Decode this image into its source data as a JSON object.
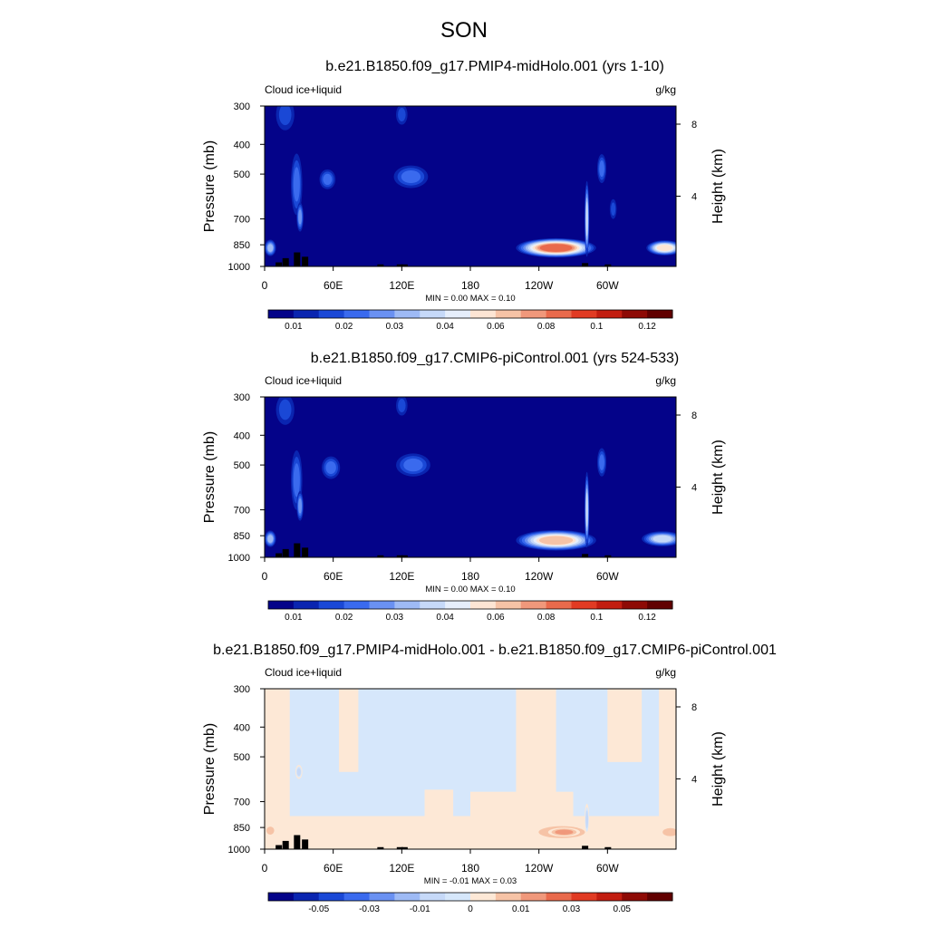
{
  "page": {
    "title": "SON"
  },
  "chart_data": [
    {
      "type": "heatmap",
      "title": "b.e21.B1850.f09_g17.PMIP4-midHolo.001 (yrs 1-10)",
      "left_label": "Cloud ice+liquid",
      "right_label": "g/kg",
      "ylabel": "Pressure (mb)",
      "y2label": "Height (km)",
      "xticks": [
        "0",
        "60E",
        "120E",
        "180",
        "120W",
        "60W"
      ],
      "xtick_lon": [
        0,
        60,
        120,
        180,
        240,
        300
      ],
      "xlim": [
        0,
        360
      ],
      "yticks": [
        "300",
        "400",
        "500",
        "700",
        "850",
        "1000"
      ],
      "ytick_p": [
        300,
        400,
        500,
        700,
        850,
        1000
      ],
      "ylim": [
        1000,
        300
      ],
      "y2ticks": [
        "8",
        "4"
      ],
      "y2tick_km": [
        8,
        4
      ],
      "minmax_text": "MIN =   0.00   MAX =   0.10",
      "colorbar_labels": [
        "0.01",
        "0.02",
        "0.03",
        "0.04",
        "0.06",
        "0.08",
        "0.1",
        "0.12"
      ],
      "colorbar_colors": [
        "#040389",
        "#0a25b0",
        "#1a48d6",
        "#3a6aee",
        "#6a91f2",
        "#9ebaf5",
        "#c6d9f8",
        "#e6eefb",
        "#fde5d4",
        "#f6c3a6",
        "#f0987b",
        "#e96a4c",
        "#e13b23",
        "#c21d10",
        "#8e0a05",
        "#610000"
      ],
      "background_color": "#040389",
      "features": [
        {
          "lon": 5,
          "p": 870,
          "dlon": 5,
          "dp": 55,
          "level": 5,
          "label": "low cloud 0E"
        },
        {
          "lon": 18,
          "p": 320,
          "dlon": 8,
          "dp": 40,
          "level": 2,
          "label": "upper cloud 20E"
        },
        {
          "lon": 28,
          "p": 540,
          "dlon": 5,
          "dp": 140,
          "level": 3,
          "label": "column 30E"
        },
        {
          "lon": 31,
          "p": 690,
          "dlon": 3,
          "dp": 80,
          "level": 4,
          "label": "column core 30E"
        },
        {
          "lon": 55,
          "p": 520,
          "dlon": 7,
          "dp": 40,
          "level": 3,
          "label": "mid cloud 55E"
        },
        {
          "lon": 120,
          "p": 320,
          "dlon": 5,
          "dp": 25,
          "level": 2,
          "label": "upper cloud 120E"
        },
        {
          "lon": 128,
          "p": 510,
          "dlon": 15,
          "dp": 45,
          "level": 3,
          "label": "mid cloud 130E"
        },
        {
          "lon": 255,
          "p": 870,
          "dlon": 35,
          "dp": 65,
          "level": 11,
          "label": "stratocumulus peru"
        },
        {
          "lon": 282,
          "p": 700,
          "dlon": 2,
          "dp": 230,
          "level": 6,
          "label": "andes column"
        },
        {
          "lon": 295,
          "p": 480,
          "dlon": 4,
          "dp": 55,
          "level": 3,
          "label": "mid cloud 65W"
        },
        {
          "lon": 305,
          "p": 650,
          "dlon": 3,
          "dp": 50,
          "level": 2,
          "label": "mid cloud 55W"
        },
        {
          "lon": 350,
          "p": 870,
          "dlon": 16,
          "dp": 50,
          "level": 8,
          "label": "stratocumulus namibia"
        }
      ],
      "terrain": [
        {
          "lon": 12,
          "p": 970
        },
        {
          "lon": 18,
          "p": 940
        },
        {
          "lon": 28,
          "p": 900
        },
        {
          "lon": 35,
          "p": 930
        },
        {
          "lon": 101,
          "p": 985
        },
        {
          "lon": 118,
          "p": 985
        },
        {
          "lon": 122,
          "p": 985
        },
        {
          "lon": 280,
          "p": 975
        },
        {
          "lon": 300,
          "p": 985
        }
      ]
    },
    {
      "type": "heatmap",
      "title": "b.e21.B1850.f09_g17.CMIP6-piControl.001 (yrs 524-533)",
      "left_label": "Cloud ice+liquid",
      "right_label": "g/kg",
      "ylabel": "Pressure (mb)",
      "y2label": "Height (km)",
      "xticks": [
        "0",
        "60E",
        "120E",
        "180",
        "120W",
        "60W"
      ],
      "xtick_lon": [
        0,
        60,
        120,
        180,
        240,
        300
      ],
      "xlim": [
        0,
        360
      ],
      "yticks": [
        "300",
        "400",
        "500",
        "700",
        "850",
        "1000"
      ],
      "ytick_p": [
        300,
        400,
        500,
        700,
        850,
        1000
      ],
      "ylim": [
        1000,
        300
      ],
      "y2ticks": [
        "8",
        "4"
      ],
      "y2tick_km": [
        8,
        4
      ],
      "minmax_text": "MIN =   0.00   MAX =   0.10",
      "colorbar_labels": [
        "0.01",
        "0.02",
        "0.03",
        "0.04",
        "0.06",
        "0.08",
        "0.1",
        "0.12"
      ],
      "colorbar_colors": [
        "#040389",
        "#0a25b0",
        "#1a48d6",
        "#3a6aee",
        "#6a91f2",
        "#9ebaf5",
        "#c6d9f8",
        "#e6eefb",
        "#fde5d4",
        "#f6c3a6",
        "#f0987b",
        "#e96a4c",
        "#e13b23",
        "#c21d10",
        "#8e0a05",
        "#610000"
      ],
      "background_color": "#040389",
      "features": [
        {
          "lon": 5,
          "p": 870,
          "dlon": 5,
          "dp": 55,
          "level": 5,
          "label": "low cloud 0E"
        },
        {
          "lon": 18,
          "p": 330,
          "dlon": 8,
          "dp": 40,
          "level": 2,
          "label": "upper cloud 20E"
        },
        {
          "lon": 28,
          "p": 560,
          "dlon": 5,
          "dp": 140,
          "level": 3,
          "label": "column 30E"
        },
        {
          "lon": 31,
          "p": 680,
          "dlon": 3,
          "dp": 80,
          "level": 4,
          "label": "column core 30E"
        },
        {
          "lon": 58,
          "p": 510,
          "dlon": 8,
          "dp": 45,
          "level": 3,
          "label": "mid cloud 55E"
        },
        {
          "lon": 120,
          "p": 320,
          "dlon": 5,
          "dp": 25,
          "level": 2,
          "label": "upper cloud 120E"
        },
        {
          "lon": 130,
          "p": 500,
          "dlon": 15,
          "dp": 45,
          "level": 3,
          "label": "mid cloud 130E"
        },
        {
          "lon": 255,
          "p": 880,
          "dlon": 35,
          "dp": 70,
          "level": 9,
          "label": "stratocumulus peru"
        },
        {
          "lon": 282,
          "p": 700,
          "dlon": 2,
          "dp": 230,
          "level": 6,
          "label": "andes column"
        },
        {
          "lon": 295,
          "p": 490,
          "dlon": 4,
          "dp": 55,
          "level": 3,
          "label": "mid cloud 65W"
        },
        {
          "lon": 348,
          "p": 870,
          "dlon": 18,
          "dp": 50,
          "level": 6,
          "label": "stratocumulus namibia"
        }
      ],
      "terrain": [
        {
          "lon": 12,
          "p": 970
        },
        {
          "lon": 18,
          "p": 940
        },
        {
          "lon": 28,
          "p": 900
        },
        {
          "lon": 35,
          "p": 930
        },
        {
          "lon": 101,
          "p": 985
        },
        {
          "lon": 118,
          "p": 985
        },
        {
          "lon": 122,
          "p": 985
        },
        {
          "lon": 280,
          "p": 975
        },
        {
          "lon": 300,
          "p": 985
        }
      ]
    },
    {
      "type": "heatmap",
      "title": "b.e21.B1850.f09_g17.PMIP4-midHolo.001 - b.e21.B1850.f09_g17.CMIP6-piControl.001",
      "left_label": "Cloud ice+liquid",
      "right_label": "g/kg",
      "ylabel": "Pressure (mb)",
      "y2label": "Height (km)",
      "xticks": [
        "0",
        "60E",
        "120E",
        "180",
        "120W",
        "60W"
      ],
      "xtick_lon": [
        0,
        60,
        120,
        180,
        240,
        300
      ],
      "xlim": [
        0,
        360
      ],
      "yticks": [
        "300",
        "400",
        "500",
        "700",
        "850",
        "1000"
      ],
      "ytick_p": [
        300,
        400,
        500,
        700,
        850,
        1000
      ],
      "ylim": [
        1000,
        300
      ],
      "y2ticks": [
        "8",
        "4"
      ],
      "y2tick_km": [
        8,
        4
      ],
      "minmax_text": "MIN =  -0.01   MAX =   0.03",
      "colorbar_labels": [
        "-0.05",
        "-0.03",
        "-0.01",
        "0",
        "0.01",
        "0.03",
        "0.05"
      ],
      "colorbar_colors": [
        "#040389",
        "#0a25b0",
        "#1a48d6",
        "#3a6aee",
        "#6a91f2",
        "#9ebaf5",
        "#c6d9f8",
        "#d6e7fb",
        "#fde8d6",
        "#f6c3a6",
        "#f0987b",
        "#e96a4c",
        "#e13b23",
        "#c21d10",
        "#8e0a05",
        "#610000"
      ],
      "background_color": "#d6e7fb",
      "features": [
        {
          "lon": 260,
          "p": 880,
          "dlon": 30,
          "dp": 60,
          "level": 9,
          "label": "peru difference"
        },
        {
          "lon": 262,
          "p": 880,
          "dlon": 14,
          "dp": 30,
          "level": 10,
          "label": "peru difference core"
        },
        {
          "lon": 355,
          "p": 880,
          "dlon": 10,
          "dp": 40,
          "level": 9,
          "label": "namibia difference"
        },
        {
          "lon": 5,
          "p": 870,
          "dlon": 5,
          "dp": 40,
          "level": 9,
          "label": "difference 0E"
        },
        {
          "lon": 30,
          "p": 560,
          "dlon": 3,
          "dp": 30,
          "level": 6,
          "label": "negative 30E"
        },
        {
          "lon": 282,
          "p": 800,
          "dlon": 2,
          "dp": 100,
          "level": 6,
          "label": "negative andes"
        }
      ],
      "warm_band": [
        {
          "lon0": 0,
          "lon1": 22,
          "p0": 300,
          "p1": 1000
        },
        {
          "lon0": 0,
          "lon1": 360,
          "p0": 780,
          "p1": 1000
        },
        {
          "lon0": 65,
          "lon1": 82,
          "p0": 300,
          "p1": 560
        },
        {
          "lon0": 140,
          "lon1": 165,
          "p0": 640,
          "p1": 1000
        },
        {
          "lon0": 180,
          "lon1": 270,
          "p0": 650,
          "p1": 1000
        },
        {
          "lon0": 220,
          "lon1": 255,
          "p0": 300,
          "p1": 700
        },
        {
          "lon0": 300,
          "lon1": 330,
          "p0": 300,
          "p1": 520
        },
        {
          "lon0": 345,
          "lon1": 360,
          "p0": 300,
          "p1": 1000
        }
      ],
      "terrain": [
        {
          "lon": 12,
          "p": 970
        },
        {
          "lon": 18,
          "p": 940
        },
        {
          "lon": 28,
          "p": 900
        },
        {
          "lon": 35,
          "p": 930
        },
        {
          "lon": 101,
          "p": 985
        },
        {
          "lon": 118,
          "p": 985
        },
        {
          "lon": 122,
          "p": 985
        },
        {
          "lon": 280,
          "p": 975
        },
        {
          "lon": 300,
          "p": 985
        }
      ]
    }
  ]
}
